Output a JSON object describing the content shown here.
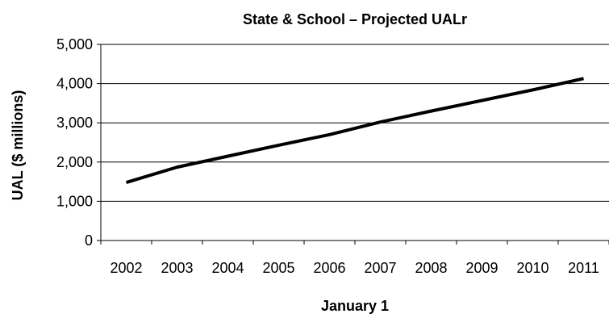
{
  "chart_data": {
    "type": "line",
    "title": "State & School – Projected UALr",
    "xlabel": "January 1",
    "ylabel": "UAL ($ millions)",
    "ylim": [
      0,
      5000
    ],
    "yticks": [
      "0",
      "1,000",
      "2,000",
      "3,000",
      "4,000",
      "5,000"
    ],
    "ytick_values": [
      0,
      1000,
      2000,
      3000,
      4000,
      5000
    ],
    "categories": [
      "2002",
      "2003",
      "2004",
      "2005",
      "2006",
      "2007",
      "2008",
      "2009",
      "2010",
      "2011"
    ],
    "series": [
      {
        "values": [
          1480,
          1870,
          2150,
          2430,
          2700,
          3020,
          3300,
          3570,
          3840,
          4130
        ]
      }
    ],
    "grid": true,
    "legend": "none",
    "line_color": "#000000"
  }
}
